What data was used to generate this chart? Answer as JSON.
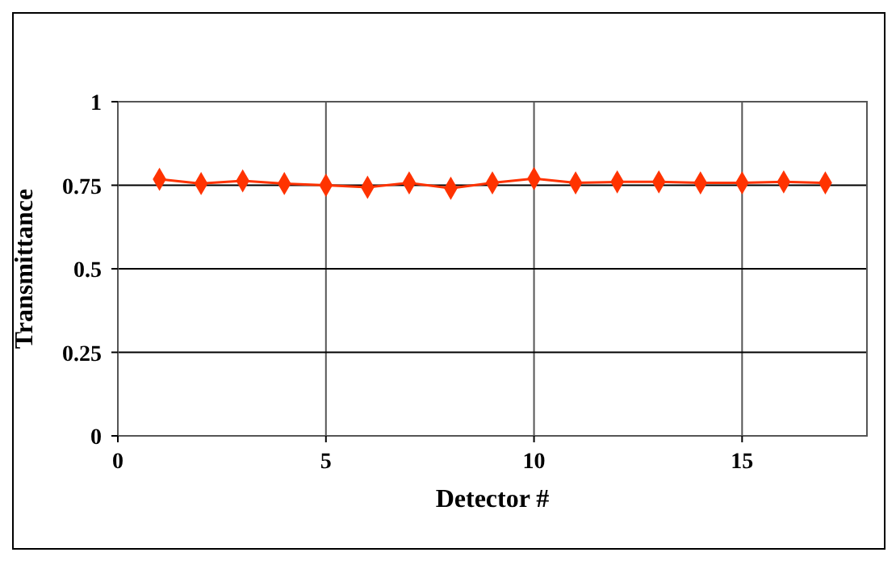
{
  "chart_data": {
    "type": "line",
    "xlabel": "Detector #",
    "ylabel": "Transmittance",
    "x": [
      1,
      2,
      3,
      4,
      5,
      6,
      7,
      8,
      9,
      10,
      11,
      12,
      13,
      14,
      15,
      16,
      17
    ],
    "series": [
      {
        "color": "#ff3300",
        "values": [
          0.768,
          0.755,
          0.763,
          0.755,
          0.75,
          0.744,
          0.757,
          0.741,
          0.757,
          0.77,
          0.757,
          0.76,
          0.76,
          0.757,
          0.757,
          0.76,
          0.757
        ]
      }
    ],
    "xlim": [
      0,
      18
    ],
    "xticks": [
      0,
      5,
      10,
      15
    ],
    "ylim": [
      0,
      1
    ],
    "yticks": [
      0,
      0.25,
      0.5,
      0.75,
      1
    ],
    "grid": true,
    "marker": "diamond"
  }
}
